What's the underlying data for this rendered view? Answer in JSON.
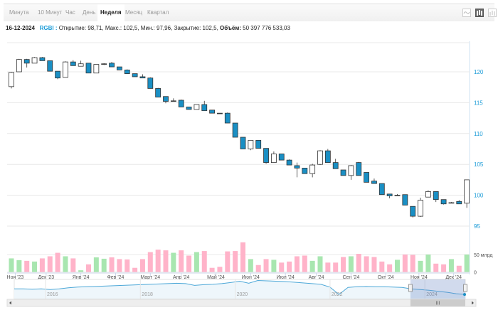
{
  "toolbar": {
    "tabs": [
      {
        "label": "Минута"
      },
      {
        "label": "10 Минут"
      },
      {
        "label": "Час"
      },
      {
        "label": "День"
      },
      {
        "label": "Неделя"
      },
      {
        "label": "Месяц"
      },
      {
        "label": "Квартал"
      }
    ],
    "active_tab": "Неделя",
    "icons": [
      "line-chart-icon",
      "candlestick-chart-icon",
      "ohlc-chart-icon"
    ]
  },
  "info": {
    "date": "16-12-2024",
    "symbol": "RGBI",
    "sep": " : ",
    "open_label": "Открытие:",
    "open": "98,71",
    "high_label": "Макс.:",
    "high": "102,5",
    "low_label": "Мин.:",
    "low": "97,96",
    "close_label": "Закрытие:",
    "close": "102,5",
    "volume_label": "Объём:",
    "volume": "50 397 776 533,03"
  },
  "colors": {
    "down": "#1a8fc4",
    "up": "#ffffff",
    "vol_up": "#a8e6b0",
    "vol_down": "#ffb3c9",
    "axis": "#1a9bd7",
    "nav_line": "#4da8d8",
    "nav_mask": "rgba(102,133,194,0.3)"
  },
  "chart_data": {
    "type": "candlestick",
    "ylim": [
      93,
      125
    ],
    "yticks": [
      95,
      100,
      105,
      110,
      115,
      120
    ],
    "xlabels": [
      "Ноя '23",
      "Дек '23",
      "Янв '24",
      "Фев '24",
      "Март '24",
      "Апр '24",
      "Май '24",
      "Июн '24",
      "Июл '24",
      "Авг '24",
      "Сен '24",
      "Окт '24",
      "Ноя '24",
      "Дек '24"
    ],
    "xlabel_index": [
      0.5,
      4.5,
      9,
      13.5,
      18,
      22,
      26.5,
      31,
      35.5,
      39.5,
      44,
      48.5,
      52.8,
      57.3
    ],
    "ohlc": [
      [
        117.6,
        120.0,
        117.3,
        119.9
      ],
      [
        120.0,
        122.1,
        120.0,
        122.0
      ],
      [
        122.0,
        122.1,
        120.7,
        121.4
      ],
      [
        121.4,
        122.4,
        121.4,
        122.3
      ],
      [
        122.3,
        122.4,
        121.8,
        121.8
      ],
      [
        121.8,
        121.8,
        120.1,
        120.1
      ],
      [
        120.1,
        120.1,
        118.8,
        119.0
      ],
      [
        119.1,
        121.7,
        119.1,
        121.6
      ],
      [
        121.6,
        121.9,
        121.0,
        121.0
      ],
      [
        120.9,
        121.8,
        120.9,
        121.3
      ],
      [
        121.4,
        121.4,
        119.8,
        119.8
      ],
      [
        119.8,
        121.2,
        119.8,
        121.2
      ],
      [
        121.2,
        121.4,
        121.1,
        121.3
      ],
      [
        121.4,
        121.6,
        120.8,
        120.8
      ],
      [
        120.8,
        120.8,
        120.3,
        120.3
      ],
      [
        120.3,
        120.4,
        119.7,
        119.7
      ],
      [
        119.7,
        119.7,
        119.2,
        119.2
      ],
      [
        119.2,
        119.6,
        119.0,
        119.0
      ],
      [
        119.0,
        119.1,
        117.3,
        117.3
      ],
      [
        117.3,
        117.4,
        115.9,
        115.9
      ],
      [
        116.0,
        116.0,
        114.9,
        115.2
      ],
      [
        115.3,
        115.7,
        115.2,
        115.3
      ],
      [
        115.4,
        115.5,
        114.3,
        114.3
      ],
      [
        114.3,
        114.3,
        113.9,
        113.9
      ],
      [
        113.9,
        114.7,
        113.9,
        114.7
      ],
      [
        114.7,
        115.3,
        113.7,
        113.7
      ],
      [
        113.8,
        113.8,
        113.3,
        113.3
      ],
      [
        113.3,
        113.3,
        113.2,
        113.2
      ],
      [
        113.3,
        113.4,
        111.7,
        111.7
      ],
      [
        111.7,
        111.7,
        109.4,
        109.4
      ],
      [
        109.4,
        109.4,
        107.5,
        107.5
      ],
      [
        107.5,
        108.9,
        107.3,
        108.9
      ],
      [
        108.9,
        108.9,
        107.6,
        107.6
      ],
      [
        107.6,
        107.6,
        105.1,
        105.3
      ],
      [
        105.3,
        107.1,
        105.3,
        106.7
      ],
      [
        106.7,
        106.7,
        105.7,
        105.7
      ],
      [
        105.7,
        105.8,
        104.9,
        104.9
      ],
      [
        104.8,
        105.3,
        102.9,
        104.4
      ],
      [
        104.4,
        104.4,
        103.5,
        103.5
      ],
      [
        103.5,
        105.1,
        102.9,
        104.9
      ],
      [
        105.0,
        107.3,
        104.9,
        107.2
      ],
      [
        107.2,
        107.5,
        105.3,
        105.3
      ],
      [
        105.3,
        105.9,
        104.3,
        104.3
      ],
      [
        104.1,
        104.1,
        103.2,
        103.2
      ],
      [
        103.2,
        104.9,
        102.5,
        104.8
      ],
      [
        105.3,
        105.4,
        103.2,
        103.2
      ],
      [
        103.7,
        103.7,
        102.1,
        102.1
      ],
      [
        102.3,
        102.7,
        101.9,
        101.9
      ],
      [
        101.9,
        101.9,
        100.1,
        100.1
      ],
      [
        100.2,
        100.2,
        99.5,
        99.9
      ],
      [
        100.0,
        100.2,
        100.0,
        100.0
      ],
      [
        100.1,
        100.1,
        98.4,
        98.4
      ],
      [
        98.2,
        98.2,
        96.4,
        96.6
      ],
      [
        96.6,
        99.6,
        96.5,
        99.2
      ],
      [
        99.7,
        100.8,
        99.7,
        100.6
      ],
      [
        100.6,
        100.6,
        98.9,
        99.3
      ],
      [
        99.3,
        99.3,
        98.5,
        98.6
      ],
      [
        98.8,
        98.9,
        98.7,
        98.8
      ],
      [
        99.0,
        99.2,
        98.6,
        98.6
      ],
      [
        98.71,
        102.5,
        97.96,
        102.5
      ]
    ],
    "volume_unit": "млрд",
    "volume_ticks": [
      {
        "v": 0,
        "label": "0"
      },
      {
        "v": 50,
        "label": "50 млрд"
      }
    ],
    "volume": [
      39,
      34,
      32,
      30,
      39,
      45,
      55,
      45,
      39,
      5,
      22,
      42,
      38,
      42,
      37,
      36,
      12,
      37,
      57,
      64,
      62,
      55,
      62,
      47,
      57,
      60,
      12,
      15,
      59,
      60,
      85,
      37,
      20,
      37,
      35,
      27,
      30,
      45,
      47,
      32,
      45,
      27,
      27,
      43,
      45,
      52,
      45,
      43,
      30,
      22,
      35,
      50,
      49,
      32,
      50,
      24,
      22,
      37,
      18,
      50
    ],
    "navigator": {
      "xlabels": [
        "2016",
        "2018",
        "2020",
        "2022",
        "2024"
      ],
      "values": [
        128,
        128,
        127,
        128,
        126,
        128,
        131,
        133,
        134,
        135,
        136,
        137,
        138,
        139,
        140,
        141,
        142,
        143,
        144,
        143,
        138,
        140,
        141,
        143,
        146,
        150,
        144,
        152,
        151,
        150,
        149,
        147,
        145,
        143,
        141,
        133,
        112,
        132,
        134,
        135,
        134,
        134,
        133,
        132,
        128,
        126,
        124,
        121,
        118,
        114,
        112
      ]
    },
    "navigator_selection": [
      0.88,
      1.0
    ]
  }
}
